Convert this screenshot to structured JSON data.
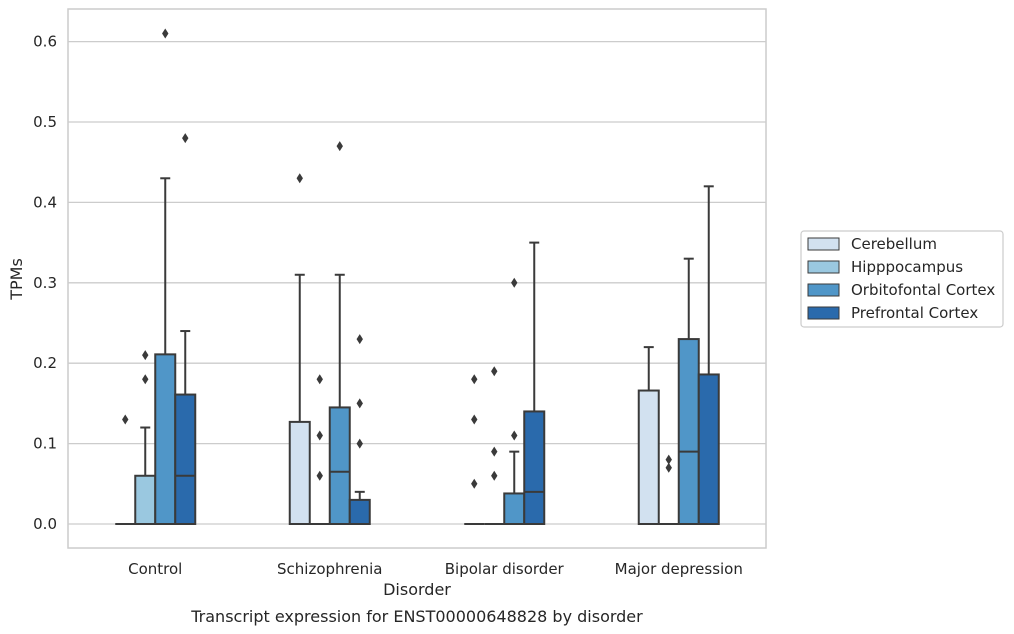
{
  "chart_data": {
    "type": "box",
    "caption": "Transcript expression for ENST00000648828 by disorder",
    "xlabel": "Disorder",
    "ylabel": "TPMs",
    "ylim": [
      -0.03,
      0.64
    ],
    "yticks": [
      "0.0",
      "0.1",
      "0.2",
      "0.3",
      "0.4",
      "0.5",
      "0.6"
    ],
    "grid": "horizontal",
    "legend_position": "right",
    "categories": [
      "Control",
      "Schizophrenia",
      "Bipolar disorder",
      "Major depression"
    ],
    "series": [
      {
        "name": "Cerebellum",
        "color": "#d2e1f0",
        "boxes": [
          {
            "whislo": 0,
            "q1": 0,
            "med": 0,
            "q3": 0,
            "whishi": 0,
            "fliers": [
              0.13
            ]
          },
          {
            "whislo": 0,
            "q1": 0,
            "med": 0,
            "q3": 0.127,
            "whishi": 0.31,
            "fliers": [
              0.43
            ]
          },
          {
            "whislo": 0,
            "q1": 0,
            "med": 0,
            "q3": 0,
            "whishi": 0,
            "fliers": [
              0.05,
              0.13,
              0.18
            ]
          },
          {
            "whislo": 0,
            "q1": 0,
            "med": 0,
            "q3": 0.166,
            "whishi": 0.22,
            "fliers": []
          }
        ]
      },
      {
        "name": "Hipppocampus",
        "color": "#9ac8e0",
        "boxes": [
          {
            "whislo": 0,
            "q1": 0,
            "med": 0,
            "q3": 0.06,
            "whishi": 0.12,
            "fliers": [
              0.18,
              0.21
            ]
          },
          {
            "whislo": 0,
            "q1": 0,
            "med": 0,
            "q3": 0,
            "whishi": 0,
            "fliers": [
              0.06,
              0.11,
              0.18
            ]
          },
          {
            "whislo": 0,
            "q1": 0,
            "med": 0,
            "q3": 0,
            "whishi": 0,
            "fliers": [
              0.06,
              0.09,
              0.19
            ]
          },
          {
            "whislo": 0,
            "q1": 0,
            "med": 0,
            "q3": 0,
            "whishi": 0,
            "fliers": [
              0.07,
              0.08
            ]
          }
        ]
      },
      {
        "name": "Orbitofontal Cortex",
        "color": "#5096c8",
        "boxes": [
          {
            "whislo": 0,
            "q1": 0,
            "med": 0,
            "q3": 0.211,
            "whishi": 0.43,
            "fliers": [
              0.61
            ]
          },
          {
            "whislo": 0,
            "q1": 0,
            "med": 0.065,
            "q3": 0.145,
            "whishi": 0.31,
            "fliers": [
              0.47
            ]
          },
          {
            "whislo": 0,
            "q1": 0,
            "med": 0,
            "q3": 0.038,
            "whishi": 0.09,
            "fliers": [
              0.11,
              0.3
            ]
          },
          {
            "whislo": 0,
            "q1": 0,
            "med": 0.09,
            "q3": 0.23,
            "whishi": 0.33,
            "fliers": []
          }
        ]
      },
      {
        "name": "Prefrontal Cortex",
        "color": "#2a6aac",
        "boxes": [
          {
            "whislo": 0,
            "q1": 0,
            "med": 0.06,
            "q3": 0.161,
            "whishi": 0.24,
            "fliers": [
              0.48
            ]
          },
          {
            "whislo": 0,
            "q1": 0,
            "med": 0,
            "q3": 0.03,
            "whishi": 0.04,
            "fliers": [
              0.1,
              0.15,
              0.23
            ]
          },
          {
            "whislo": 0,
            "q1": 0,
            "med": 0.04,
            "q3": 0.14,
            "whishi": 0.35,
            "fliers": []
          },
          {
            "whislo": 0,
            "q1": 0,
            "med": 0,
            "q3": 0.186,
            "whishi": 0.42,
            "fliers": []
          }
        ]
      }
    ]
  }
}
